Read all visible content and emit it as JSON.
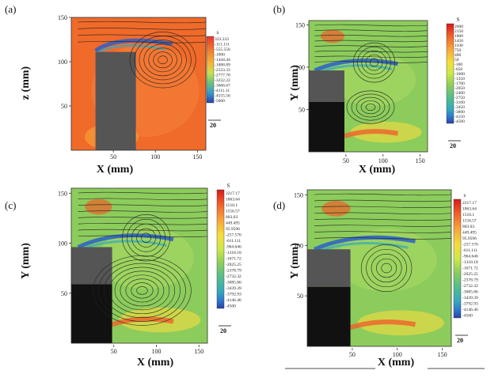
{
  "chart_data": [
    {
      "type": "heatmap",
      "panel_label": "(a)",
      "xlabel": "X (mm)",
      "ylabel": "z (mm)",
      "x_ticks": [
        "50",
        "100",
        "150"
      ],
      "y_ticks": [
        "50",
        "100",
        "150"
      ],
      "xlim": [
        0,
        160
      ],
      "ylim": [
        0,
        150
      ],
      "colorbar": {
        "title": "s",
        "levels": [
          "333.333",
          "-111.111",
          "-555.556",
          "-1000",
          "-1444.44",
          "-1888.89",
          "-2333.33",
          "-2777.78",
          "-3222.22",
          "-3666.67",
          "-4111.11",
          "-4555.56",
          "-5000"
        ]
      },
      "reference_vector": "20"
    },
    {
      "type": "heatmap",
      "panel_label": "(b)",
      "xlabel": "X (mm)",
      "ylabel": "Y (mm)",
      "x_ticks": [
        "50",
        "100",
        "150"
      ],
      "y_ticks": [
        "50",
        "100",
        "150"
      ],
      "xlim": [
        0,
        160
      ],
      "ylim": [
        0,
        155
      ],
      "colorbar": {
        "title": "S",
        "levels": [
          "2600",
          "2150",
          "1800",
          "1450",
          "1100",
          "750",
          "400",
          "50",
          "-300",
          "-650",
          "-1000",
          "-1350",
          "-1700",
          "-2050",
          "-2400",
          "-2750",
          "-3100",
          "-3450",
          "-3800",
          "-4150",
          "-4500"
        ]
      },
      "reference_vector": "20"
    },
    {
      "type": "heatmap",
      "panel_label": "(c)",
      "xlabel": "X (mm)",
      "ylabel": "Y (mm)",
      "x_ticks": [
        "50",
        "100",
        "150"
      ],
      "y_ticks": [
        "50",
        "100",
        "150"
      ],
      "xlim": [
        0,
        160
      ],
      "ylim": [
        0,
        155
      ],
      "colorbar": {
        "title": "S",
        "levels": [
          "2217.17",
          "1863.64",
          "1510.1",
          "1156.57",
          "803.03",
          "449.495",
          "95.9596",
          "-257.576",
          "-611.111",
          "-964.646",
          "-1318.18",
          "-1671.72",
          "-2025.25",
          "-2378.79",
          "-2732.32",
          "-3085.86",
          "-3439.39",
          "-3792.93",
          "-4146.46",
          "-4500"
        ]
      },
      "reference_vector": "20"
    },
    {
      "type": "heatmap",
      "panel_label": "(d)",
      "xlabel": "X (mm)",
      "ylabel": "Y (mm)",
      "x_ticks": [
        "50",
        "100",
        "150"
      ],
      "y_ticks": [
        "50",
        "100",
        "150"
      ],
      "xlim": [
        0,
        160
      ],
      "ylim": [
        0,
        155
      ],
      "colorbar": {
        "title": "s",
        "levels": [
          "2217.17",
          "1863.64",
          "1510.1",
          "1156.57",
          "803.03",
          "449.495",
          "95.9596",
          "-257.576",
          "-611.111",
          "-964.646",
          "-1318.18",
          "-1671.72",
          "-2025.25",
          "-2378.79",
          "-2732.32",
          "-3085.86",
          "-3439.39",
          "-3792.93",
          "-4146.46",
          "-4500"
        ]
      },
      "reference_vector": "20"
    }
  ],
  "colors": {
    "field_orange": "#f06a2a",
    "field_green": "#8ccc5c",
    "jet_blue": "#2a5fc8",
    "block_dark": "#111111",
    "block_gray": "#555555",
    "colorbar": [
      "#d7191c",
      "#f0602a",
      "#f7a43a",
      "#f6dc3d",
      "#cde84a",
      "#8ccc5c",
      "#54be8c",
      "#35a8c0",
      "#2f74c8",
      "#2a3fa8"
    ]
  }
}
